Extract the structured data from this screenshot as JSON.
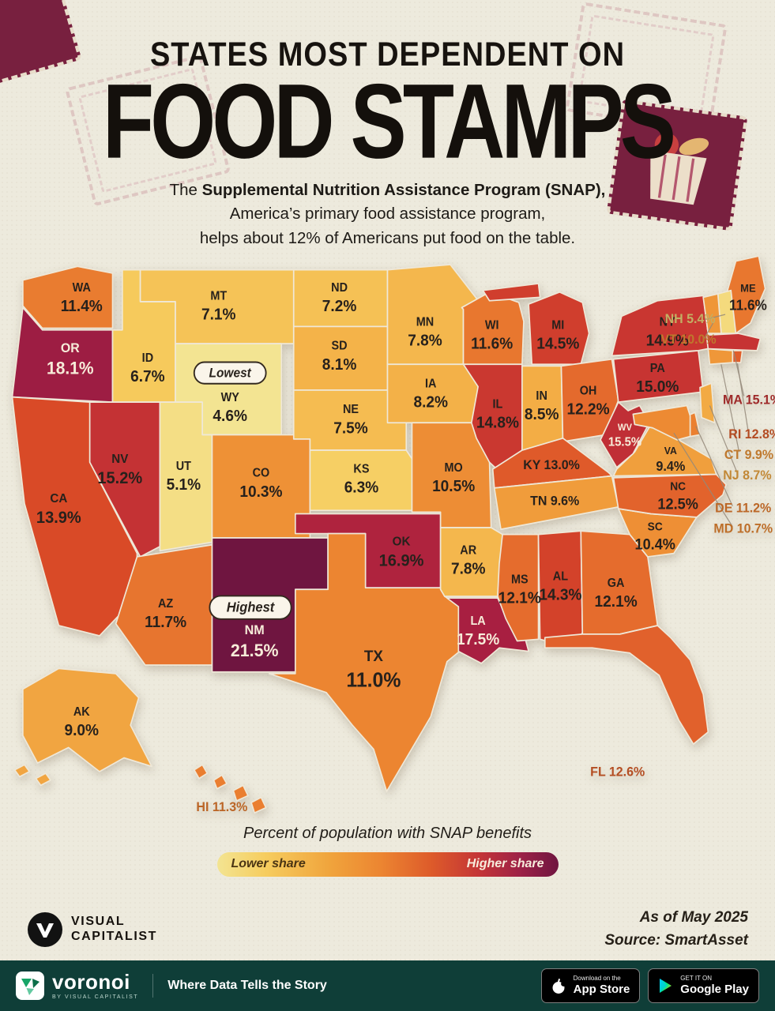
{
  "title": {
    "kicker": "STATES MOST DEPENDENT ON",
    "main": "FOOD STAMPS"
  },
  "subtitle": {
    "pre": "The ",
    "bold": "Supplemental Nutrition Assistance Program (SNAP),",
    "line2": "America’s primary food assistance program,",
    "line3": "helps about 12% of Americans put food on the table."
  },
  "chart_data": {
    "type": "choropleth",
    "title": "States Most Dependent on Food Stamps",
    "metric": "Percent of population with SNAP benefits",
    "unit": "%",
    "range": [
      4.6,
      21.5
    ],
    "annotations": {
      "lowest": {
        "label": "Lowest",
        "state": "WY"
      },
      "highest": {
        "label": "Highest",
        "state": "NM"
      }
    },
    "states": [
      {
        "abbr": "WA",
        "value": 11.4
      },
      {
        "abbr": "OR",
        "value": 18.1
      },
      {
        "abbr": "ID",
        "value": 6.7
      },
      {
        "abbr": "MT",
        "value": 7.1
      },
      {
        "abbr": "WY",
        "value": 4.6
      },
      {
        "abbr": "NV",
        "value": 15.2
      },
      {
        "abbr": "UT",
        "value": 5.1
      },
      {
        "abbr": "CA",
        "value": 13.9
      },
      {
        "abbr": "AZ",
        "value": 11.7
      },
      {
        "abbr": "CO",
        "value": 10.3
      },
      {
        "abbr": "NM",
        "value": 21.5
      },
      {
        "abbr": "ND",
        "value": 7.2
      },
      {
        "abbr": "SD",
        "value": 8.1
      },
      {
        "abbr": "NE",
        "value": 7.5
      },
      {
        "abbr": "KS",
        "value": 6.3
      },
      {
        "abbr": "OK",
        "value": 16.9
      },
      {
        "abbr": "TX",
        "value": 11.0
      },
      {
        "abbr": "MN",
        "value": 7.8
      },
      {
        "abbr": "IA",
        "value": 8.2
      },
      {
        "abbr": "MO",
        "value": 10.5
      },
      {
        "abbr": "AR",
        "value": 7.8
      },
      {
        "abbr": "LA",
        "value": 17.5
      },
      {
        "abbr": "WI",
        "value": 11.6
      },
      {
        "abbr": "IL",
        "value": 14.8
      },
      {
        "abbr": "MS",
        "value": 12.1
      },
      {
        "abbr": "MI",
        "value": 14.5
      },
      {
        "abbr": "IN",
        "value": 8.5
      },
      {
        "abbr": "OH",
        "value": 12.2
      },
      {
        "abbr": "KY",
        "value": 13.0
      },
      {
        "abbr": "TN",
        "value": 9.6
      },
      {
        "abbr": "AL",
        "value": 14.3
      },
      {
        "abbr": "GA",
        "value": 12.1
      },
      {
        "abbr": "FL",
        "value": 12.6
      },
      {
        "abbr": "SC",
        "value": 10.4
      },
      {
        "abbr": "NC",
        "value": 12.5
      },
      {
        "abbr": "VA",
        "value": 9.4
      },
      {
        "abbr": "WV",
        "value": 15.5
      },
      {
        "abbr": "PA",
        "value": 15.0
      },
      {
        "abbr": "NY",
        "value": 14.9
      },
      {
        "abbr": "ME",
        "value": 11.6
      },
      {
        "abbr": "NH",
        "value": 5.4
      },
      {
        "abbr": "VT",
        "value": 10.0
      },
      {
        "abbr": "MA",
        "value": 15.1
      },
      {
        "abbr": "RI",
        "value": 12.8
      },
      {
        "abbr": "CT",
        "value": 9.9
      },
      {
        "abbr": "NJ",
        "value": 8.7
      },
      {
        "abbr": "DE",
        "value": 11.2
      },
      {
        "abbr": "MD",
        "value": 10.7
      },
      {
        "abbr": "AK",
        "value": 9.0
      },
      {
        "abbr": "HI",
        "value": 11.3
      }
    ]
  },
  "legend": {
    "caption": "Percent of population with SNAP benefits",
    "low_label": "Lower share",
    "high_label": "Higher share",
    "low_color": "#f3e492",
    "high_color": "#6f1540"
  },
  "footer": {
    "as_of": "As of May 2025",
    "source": "Source: SmartAsset",
    "logo_top": "VISUAL",
    "logo_bottom": "CAPITALIST"
  },
  "bottom_bar": {
    "brand": "voronoi",
    "brand_sub": "BY VISUAL CAPITALIST",
    "tagline": "Where Data Tells the Story",
    "appstore": {
      "top": "Download on the",
      "bottom": "App Store"
    },
    "googleplay": {
      "top": "GET IT ON",
      "bottom": "Google Play"
    }
  }
}
